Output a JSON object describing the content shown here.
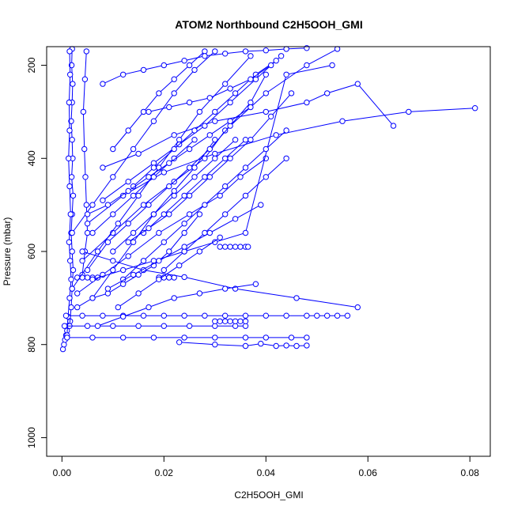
{
  "chart_data": {
    "type": "line",
    "title": "ATOM2 Northbound C2H5OOH_GMI",
    "xlabel": "C2H5OOH_GMI",
    "ylabel": "Pressure (mbar)",
    "xlim": [
      -0.003,
      0.084
    ],
    "ylim": [
      1040,
      160
    ],
    "y_inverted": true,
    "x_ticks": [
      0.0,
      0.02,
      0.04,
      0.06,
      0.08
    ],
    "x_tick_labels": [
      "0.00",
      "0.02",
      "0.04",
      "0.06",
      "0.08"
    ],
    "y_ticks": [
      200,
      400,
      600,
      800,
      1000
    ],
    "y_tick_labels": [
      "200",
      "400",
      "600",
      "800",
      "1000"
    ],
    "grid": false,
    "legend": "none",
    "color": "#0000ff",
    "marker": "open-circle",
    "series": [
      {
        "x": [
          0.0002,
          0.0004,
          0.0006,
          0.0008,
          0.001,
          0.0012,
          0.0016
        ],
        "y": [
          810,
          800,
          790,
          780,
          770,
          760,
          750
        ]
      },
      {
        "x": [
          0.0015,
          0.0018,
          0.002,
          0.0022,
          0.002,
          0.0018,
          0.002,
          0.0022,
          0.0019,
          0.0021,
          0.002,
          0.0018,
          0.002,
          0.0021,
          0.0019,
          0.002
        ],
        "y": [
          760,
          720,
          680,
          640,
          600,
          560,
          520,
          480,
          440,
          400,
          360,
          320,
          280,
          240,
          200,
          165
        ]
      },
      {
        "x": [
          0.001,
          0.0012,
          0.0015,
          0.0018,
          0.0016,
          0.0014,
          0.0017,
          0.0015,
          0.0013,
          0.0015,
          0.0014,
          0.0016,
          0.0015
        ],
        "y": [
          780,
          740,
          700,
          660,
          620,
          580,
          520,
          460,
          400,
          340,
          280,
          220,
          170
        ]
      },
      {
        "x": [
          0.004,
          0.0045,
          0.005,
          0.0048,
          0.0046,
          0.0044,
          0.0042,
          0.0045,
          0.0048
        ],
        "y": [
          650,
          600,
          560,
          500,
          440,
          380,
          300,
          230,
          170
        ]
      },
      {
        "x": [
          0.0008,
          0.004,
          0.008,
          0.012,
          0.016,
          0.02,
          0.024,
          0.028,
          0.032,
          0.036,
          0.04,
          0.044,
          0.048,
          0.05,
          0.052,
          0.054,
          0.056
        ],
        "y": [
          738,
          738,
          738,
          738,
          738,
          738,
          738,
          738,
          738,
          738,
          738,
          738,
          738,
          738,
          738,
          738,
          738
        ]
      },
      {
        "x": [
          0.0005,
          0.005,
          0.01,
          0.015,
          0.02,
          0.025,
          0.03,
          0.034,
          0.036
        ],
        "y": [
          760,
          760,
          760,
          760,
          760,
          760,
          760,
          760,
          760
        ]
      },
      {
        "x": [
          0.001,
          0.006,
          0.012,
          0.018,
          0.024,
          0.03,
          0.036,
          0.04,
          0.045,
          0.048
        ],
        "y": [
          785,
          785,
          785,
          785,
          785,
          785,
          785,
          785,
          785,
          785
        ]
      },
      {
        "x": [
          0.031,
          0.032,
          0.033,
          0.034,
          0.035,
          0.036,
          0.0365
        ],
        "y": [
          590,
          590,
          590,
          590,
          590,
          590,
          590
        ]
      },
      {
        "x": [
          0.03,
          0.031,
          0.032,
          0.033,
          0.034,
          0.035,
          0.036
        ],
        "y": [
          750,
          750,
          750,
          750,
          750,
          750,
          750
        ]
      },
      {
        "x": [
          0.019,
          0.02,
          0.021,
          0.022
        ],
        "y": [
          656,
          656,
          656,
          656
        ]
      },
      {
        "x": [
          0.003,
          0.004,
          0.005,
          0.006,
          0.007
        ],
        "y": [
          656,
          656,
          656,
          656,
          656
        ]
      },
      {
        "x": [
          0.023,
          0.03,
          0.036,
          0.039,
          0.042,
          0.044,
          0.046,
          0.048
        ],
        "y": [
          795,
          800,
          803,
          798,
          803,
          802,
          803,
          802
        ]
      },
      {
        "x": [
          0.008,
          0.015,
          0.022,
          0.03,
          0.04,
          0.048,
          0.052,
          0.058,
          0.065
        ],
        "y": [
          420,
          390,
          350,
          320,
          300,
          280,
          260,
          240,
          330
        ]
      },
      {
        "x": [
          0.005,
          0.012,
          0.02,
          0.03,
          0.042,
          0.055,
          0.068,
          0.081
        ],
        "y": [
          540,
          480,
          430,
          390,
          350,
          320,
          300,
          292
        ]
      },
      {
        "x": [
          0.004,
          0.01,
          0.016,
          0.022,
          0.028,
          0.032,
          0.04,
          0.048,
          0.054
        ],
        "y": [
          620,
          560,
          500,
          450,
          400,
          340,
          260,
          200,
          165
        ]
      },
      {
        "x": [
          0.006,
          0.01,
          0.014,
          0.018,
          0.022,
          0.026,
          0.03
        ],
        "y": [
          700,
          640,
          580,
          520,
          470,
          420,
          360
        ]
      },
      {
        "x": [
          0.003,
          0.008,
          0.013,
          0.019,
          0.025,
          0.031,
          0.035,
          0.04
        ],
        "y": [
          690,
          650,
          610,
          560,
          520,
          480,
          440,
          400
        ]
      },
      {
        "x": [
          0.002,
          0.007,
          0.011,
          0.015,
          0.019,
          0.023,
          0.027,
          0.032,
          0.037
        ],
        "y": [
          680,
          600,
          540,
          480,
          420,
          360,
          300,
          240,
          180
        ]
      },
      {
        "x": [
          0.005,
          0.009,
          0.013,
          0.017,
          0.021,
          0.025,
          0.029,
          0.033,
          0.037,
          0.04
        ],
        "y": [
          640,
          580,
          540,
          500,
          460,
          420,
          380,
          330,
          280,
          220
        ]
      },
      {
        "x": [
          0.006,
          0.012,
          0.018,
          0.024,
          0.03,
          0.036,
          0.044,
          0.053
        ],
        "y": [
          660,
          640,
          620,
          600,
          580,
          560,
          220,
          200
        ]
      },
      {
        "x": [
          0.004,
          0.01,
          0.016,
          0.024,
          0.034,
          0.046,
          0.058
        ],
        "y": [
          600,
          620,
          640,
          655,
          680,
          700,
          720
        ]
      },
      {
        "x": [
          0.007,
          0.012,
          0.017,
          0.022,
          0.027,
          0.032,
          0.038
        ],
        "y": [
          760,
          740,
          720,
          700,
          690,
          680,
          670
        ]
      },
      {
        "x": [
          0.003,
          0.006,
          0.009,
          0.012,
          0.015,
          0.018,
          0.021,
          0.024,
          0.027
        ],
        "y": [
          720,
          700,
          690,
          670,
          650,
          630,
          600,
          560,
          520
        ]
      },
      {
        "x": [
          0.006,
          0.01,
          0.014,
          0.018,
          0.022,
          0.026
        ],
        "y": [
          560,
          520,
          480,
          440,
          400,
          360
        ]
      },
      {
        "x": [
          0.008,
          0.013,
          0.018,
          0.023,
          0.028,
          0.033,
          0.038,
          0.043
        ],
        "y": [
          490,
          450,
          410,
          370,
          330,
          280,
          230,
          180
        ]
      },
      {
        "x": [
          0.01,
          0.014,
          0.018,
          0.022,
          0.026,
          0.03,
          0.034
        ],
        "y": [
          600,
          560,
          520,
          480,
          440,
          400,
          360
        ]
      },
      {
        "x": [
          0.012,
          0.016,
          0.02,
          0.024,
          0.028,
          0.032,
          0.036,
          0.04,
          0.044
        ],
        "y": [
          660,
          620,
          580,
          540,
          500,
          460,
          420,
          380,
          340
        ]
      },
      {
        "x": [
          0.002,
          0.006,
          0.01,
          0.014,
          0.018,
          0.022,
          0.026,
          0.03
        ],
        "y": [
          560,
          500,
          440,
          380,
          320,
          260,
          210,
          170
        ]
      },
      {
        "x": [
          0.01,
          0.013,
          0.016,
          0.019,
          0.022,
          0.025,
          0.028
        ],
        "y": [
          380,
          340,
          300,
          260,
          230,
          200,
          170
        ]
      },
      {
        "x": [
          0.014,
          0.018,
          0.022,
          0.026,
          0.03,
          0.034,
          0.038,
          0.042
        ],
        "y": [
          460,
          420,
          380,
          340,
          300,
          260,
          220,
          190
        ]
      },
      {
        "x": [
          0.016,
          0.02,
          0.024,
          0.028,
          0.032,
          0.036
        ],
        "y": [
          560,
          520,
          480,
          440,
          400,
          360
        ]
      },
      {
        "x": [
          0.005,
          0.009,
          0.013,
          0.017,
          0.021,
          0.025,
          0.029,
          0.033,
          0.037
        ],
        "y": [
          520,
          500,
          470,
          440,
          410,
          380,
          350,
          320,
          290
        ]
      },
      {
        "x": [
          0.011,
          0.015,
          0.019,
          0.023,
          0.027,
          0.031
        ],
        "y": [
          720,
          690,
          660,
          630,
          600,
          570
        ]
      },
      {
        "x": [
          0.02,
          0.024,
          0.028,
          0.032,
          0.036,
          0.04,
          0.044
        ],
        "y": [
          640,
          600,
          560,
          520,
          480,
          440,
          400
        ]
      },
      {
        "x": [
          0.008,
          0.012,
          0.016,
          0.02,
          0.024,
          0.028,
          0.032,
          0.036,
          0.04,
          0.044,
          0.048
        ],
        "y": [
          240,
          220,
          210,
          200,
          190,
          180,
          175,
          170,
          168,
          165,
          163
        ]
      },
      {
        "x": [
          0.017,
          0.021,
          0.025,
          0.029,
          0.033,
          0.037,
          0.041
        ],
        "y": [
          300,
          290,
          280,
          270,
          250,
          230,
          200
        ]
      },
      {
        "x": [
          0.013,
          0.017,
          0.021,
          0.025,
          0.029,
          0.033,
          0.037,
          0.041,
          0.045
        ],
        "y": [
          580,
          550,
          520,
          480,
          440,
          400,
          360,
          310,
          260
        ]
      },
      {
        "x": [
          0.009,
          0.014,
          0.019,
          0.024,
          0.029,
          0.034,
          0.039
        ],
        "y": [
          680,
          650,
          620,
          590,
          560,
          530,
          500
        ]
      }
    ]
  }
}
